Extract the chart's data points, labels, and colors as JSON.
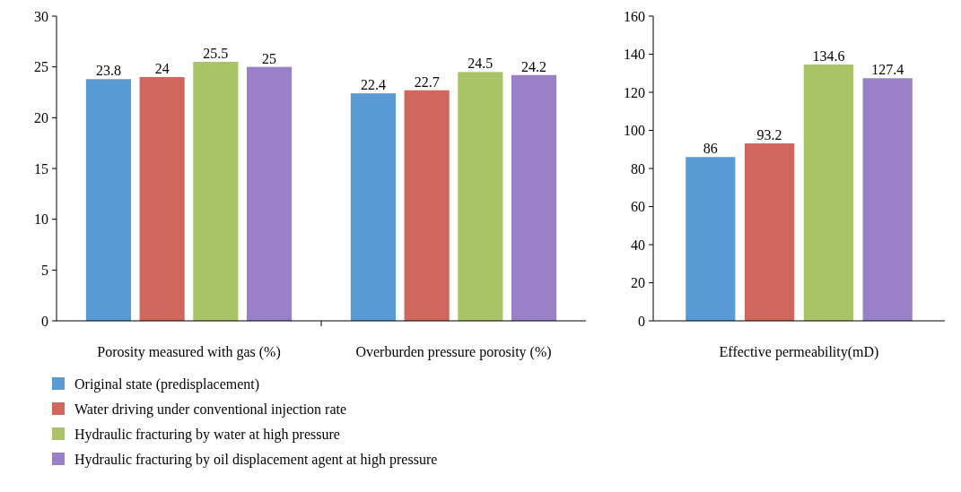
{
  "chart_data": [
    {
      "type": "bar",
      "categories": [
        "Porosity measured with gas (%)",
        "Overburden pressure porosity (%)"
      ],
      "series": [
        {
          "name": "Original state (predisplacement)",
          "color": "#5b9bd5",
          "values": [
            23.8,
            22.4
          ]
        },
        {
          "name": "Water driving under conventional injection rate",
          "color": "#d0675f",
          "values": [
            24,
            22.7
          ]
        },
        {
          "name": "Hydraulic fracturing by water at high pressure",
          "color": "#a9c467",
          "values": [
            25.5,
            24.5
          ]
        },
        {
          "name": "Hydraulic fracturing by oil displacement agent at high pressure",
          "color": "#9a80c7",
          "values": [
            25,
            24.2
          ]
        }
      ],
      "ylim": [
        0,
        30
      ],
      "yticks": [
        0,
        5,
        10,
        15,
        20,
        25,
        30
      ],
      "data_labels": true,
      "legend": "bottom",
      "grid": false
    },
    {
      "type": "bar",
      "categories": [
        null,
        null,
        null,
        null
      ],
      "xlabel": "Effective permeability(mD)",
      "values": [
        86,
        93.2,
        134.6,
        127.4
      ],
      "colors": [
        "#5b9bd5",
        "#d0675f",
        "#a9c467",
        "#9a80c7"
      ],
      "ylim": [
        0,
        160
      ],
      "yticks": [
        0,
        20,
        40,
        60,
        80,
        100,
        120,
        140,
        160
      ],
      "data_labels": true,
      "grid": false
    }
  ]
}
